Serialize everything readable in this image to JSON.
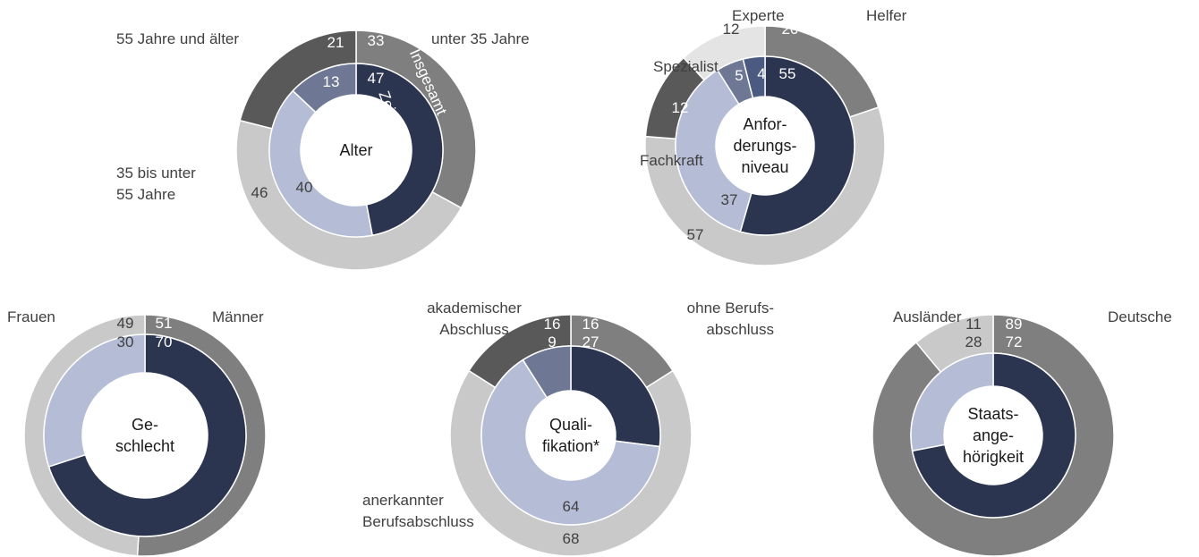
{
  "chart_data": [
    {
      "type": "donut",
      "center_label": "Alter",
      "categories": [
        "unter 35 Jahre",
        "35 bis unter\n55 Jahre",
        "55 Jahre und älter"
      ],
      "series": [
        {
          "name": "Insgesamt",
          "values": [
            33,
            46,
            21
          ],
          "colors": [
            "#7f7f7f",
            "#c9c9c9",
            "#595959"
          ]
        },
        {
          "name": "Zeitarbeit",
          "values": [
            47,
            40,
            13
          ],
          "colors": [
            "#2c3550",
            "#b5bdd6",
            "#6e7894"
          ]
        }
      ]
    },
    {
      "type": "donut",
      "center_label": "Anfor-\nderungs-\nniveau",
      "categories": [
        "Helfer",
        "Fachkraft",
        "Spezialist",
        "Experte"
      ],
      "series": [
        {
          "values": [
            20,
            57,
            12,
            12
          ],
          "colors": [
            "#7f7f7f",
            "#c9c9c9",
            "#595959",
            "#e4e4e4"
          ]
        },
        {
          "values": [
            55,
            37,
            5,
            4
          ],
          "colors": [
            "#2c3550",
            "#b5bdd6",
            "#6e7894",
            "#4b5a80"
          ]
        }
      ]
    },
    {
      "type": "donut",
      "center_label": "Ge-\nschlecht",
      "categories": [
        "Männer",
        "Frauen"
      ],
      "series": [
        {
          "values": [
            51,
            49
          ],
          "colors": [
            "#7f7f7f",
            "#c9c9c9"
          ]
        },
        {
          "values": [
            70,
            30
          ],
          "colors": [
            "#2c3550",
            "#b5bdd6"
          ]
        }
      ]
    },
    {
      "type": "donut",
      "center_label": "Quali-\nfikation*",
      "categories": [
        "ohne Berufs-\nabschluss",
        "anerkannter\nBerufsabschluss",
        "akademischer\nAbschluss"
      ],
      "series": [
        {
          "values": [
            16,
            68,
            16
          ],
          "colors": [
            "#7f7f7f",
            "#c9c9c9",
            "#595959"
          ]
        },
        {
          "values": [
            27,
            64,
            9
          ],
          "colors": [
            "#2c3550",
            "#b5bdd6",
            "#6e7894"
          ]
        }
      ]
    },
    {
      "type": "donut",
      "center_label": "Staats-\nange-\nhörigkeit",
      "categories": [
        "Deutsche",
        "Ausländer"
      ],
      "series": [
        {
          "values": [
            89,
            11
          ],
          "colors": [
            "#7f7f7f",
            "#c9c9c9"
          ]
        },
        {
          "values": [
            72,
            28
          ],
          "colors": [
            "#2c3550",
            "#b5bdd6"
          ]
        }
      ]
    }
  ]
}
